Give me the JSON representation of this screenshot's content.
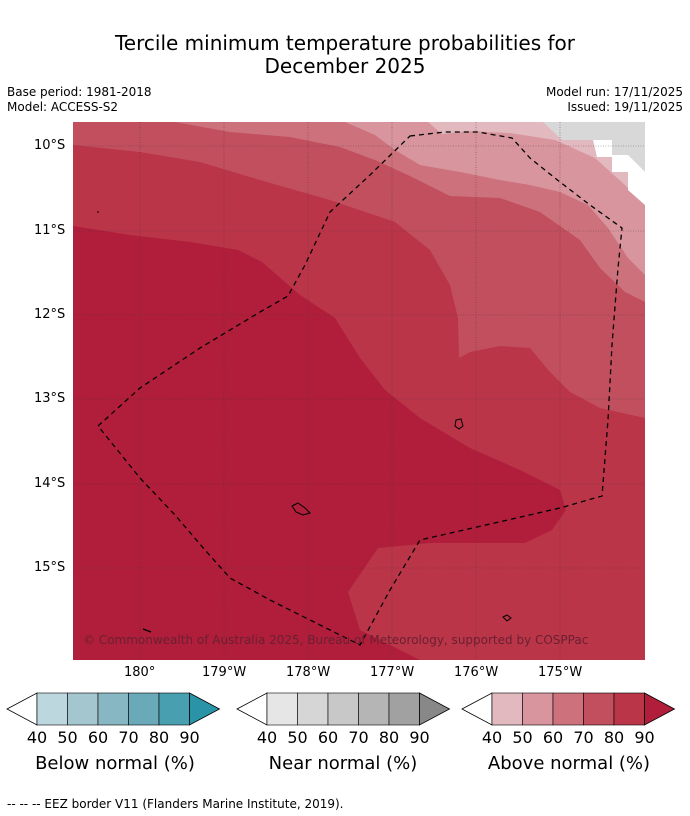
{
  "title_line1": "Tercile minimum temperature probabilities for",
  "title_line2": "December 2025",
  "base_period": "Base period: 1981-2018",
  "model": "Model: ACCESS-S2",
  "model_run": "Model run: 17/11/2025",
  "issued": "Issued: 19/11/2025",
  "copyright": "© Commonwealth of Australia 2025, Bureau of Meteorology, supported by COSPPac",
  "footer": "--  --  -- EEZ border V11 (Flanders Marine Institute, 2019).",
  "lat_labels": [
    "10°S",
    "11°S",
    "12°S",
    "13°S",
    "14°S",
    "15°S"
  ],
  "lon_labels": [
    "180°",
    "179°W",
    "178°W",
    "177°W",
    "176°W",
    "175°W"
  ],
  "colorbars": [
    {
      "name": "below",
      "label": "Below normal (%)",
      "ticks": [
        "40",
        "50",
        "60",
        "70",
        "80",
        "90"
      ],
      "colors": [
        "#bdd7df",
        "#a3c6cf",
        "#88b7c4",
        "#6aa9b8",
        "#479fb0",
        "#2b93a8"
      ]
    },
    {
      "name": "near",
      "label": "Near normal (%)",
      "ticks": [
        "40",
        "50",
        "60",
        "70",
        "80",
        "90"
      ],
      "colors": [
        "#e6e6e6",
        "#d6d6d6",
        "#c8c8c8",
        "#b5b5b5",
        "#a1a1a1",
        "#888888"
      ]
    },
    {
      "name": "above",
      "label": "Above normal (%)",
      "ticks": [
        "40",
        "50",
        "60",
        "70",
        "80",
        "90"
      ],
      "colors": [
        "#e3b9c0",
        "#d8959d",
        "#cd727c",
        "#c24f5e",
        "#bb3549",
        "#b01e3b"
      ]
    }
  ]
}
